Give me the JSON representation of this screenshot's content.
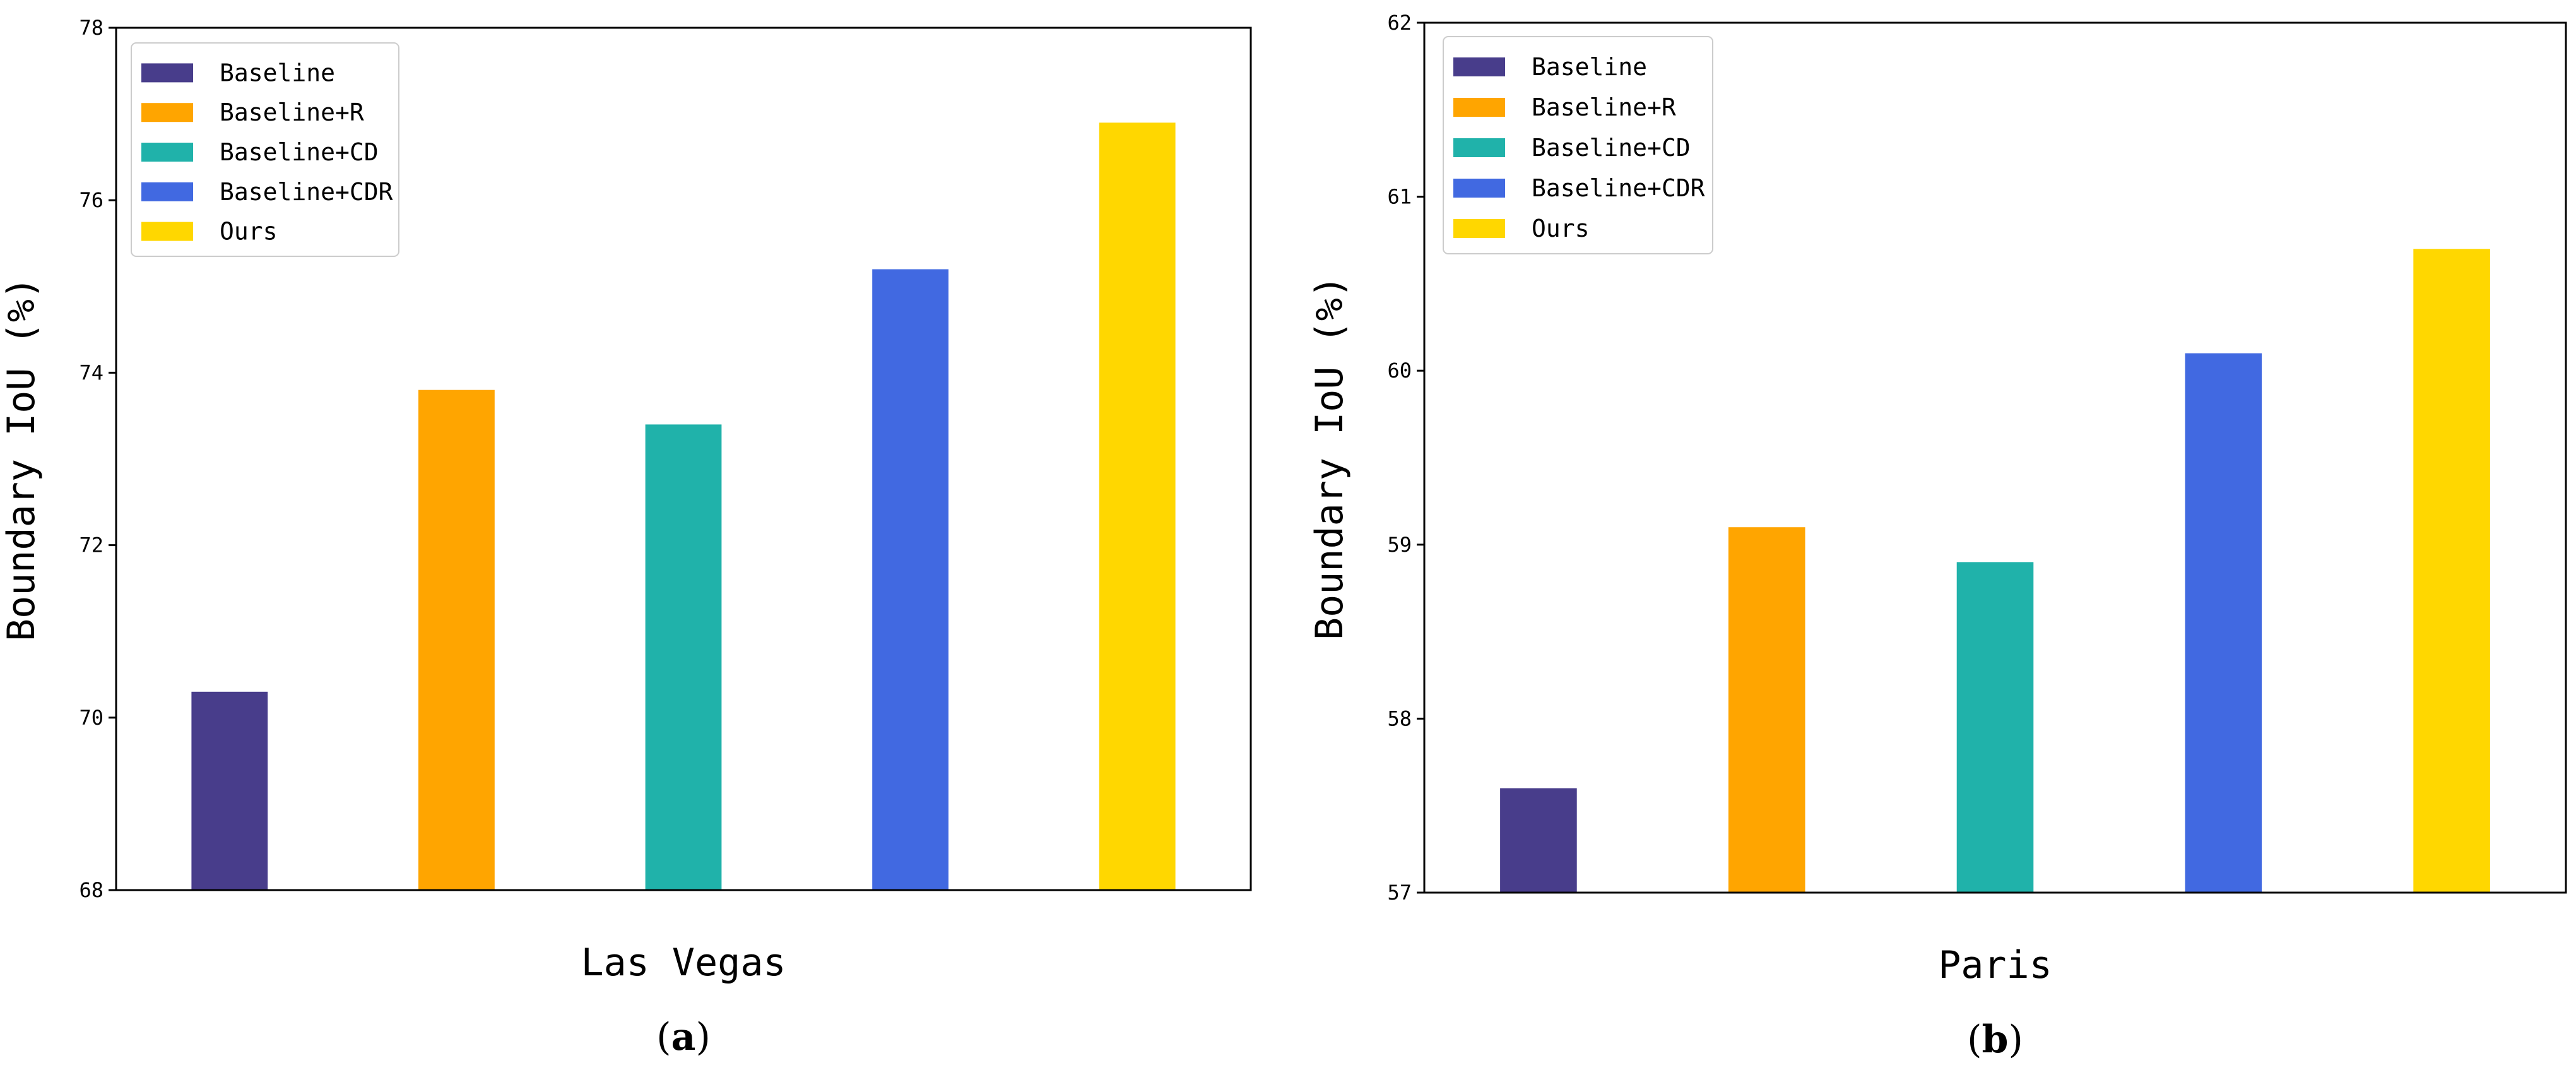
{
  "chart_data": [
    {
      "type": "bar",
      "panel": "(a)",
      "panel_letter": "a",
      "title": "",
      "xlabel": "Las Vegas",
      "ylabel": "Boundary IoU (%)",
      "categories": [
        "Baseline",
        "Baseline+R",
        "Baseline+CD",
        "Baseline+CDR",
        "Ours"
      ],
      "values": [
        70.3,
        73.8,
        73.4,
        75.2,
        76.9
      ],
      "colors": [
        "#483D8B",
        "#FFA500",
        "#20B2AA",
        "#4169E1",
        "#FFD700"
      ],
      "ylim": [
        68,
        78
      ],
      "yticks": [
        68,
        70,
        72,
        74,
        76,
        78
      ],
      "ytick_labels": [
        "68",
        "70",
        "72",
        "74",
        "76",
        "78"
      ],
      "legend": [
        "Baseline",
        "Baseline+R",
        "Baseline+CD",
        "Baseline+CDR",
        "Ours"
      ],
      "legend_position": "top-left",
      "grid": false
    },
    {
      "type": "bar",
      "panel": "(b)",
      "panel_letter": "b",
      "title": "",
      "xlabel": "Paris",
      "ylabel": "Boundary IoU (%)",
      "categories": [
        "Baseline",
        "Baseline+R",
        "Baseline+CD",
        "Baseline+CDR",
        "Ours"
      ],
      "values": [
        57.6,
        59.1,
        58.9,
        60.1,
        60.7
      ],
      "colors": [
        "#483D8B",
        "#FFA500",
        "#20B2AA",
        "#4169E1",
        "#FFD700"
      ],
      "ylim": [
        57,
        62
      ],
      "yticks": [
        57,
        58,
        59,
        60,
        61,
        62
      ],
      "ytick_labels": [
        "57",
        "58",
        "59",
        "60",
        "61",
        "62"
      ],
      "legend": [
        "Baseline",
        "Baseline+R",
        "Baseline+CD",
        "Baseline+CDR",
        "Ours"
      ],
      "legend_position": "top-left",
      "grid": false
    }
  ]
}
